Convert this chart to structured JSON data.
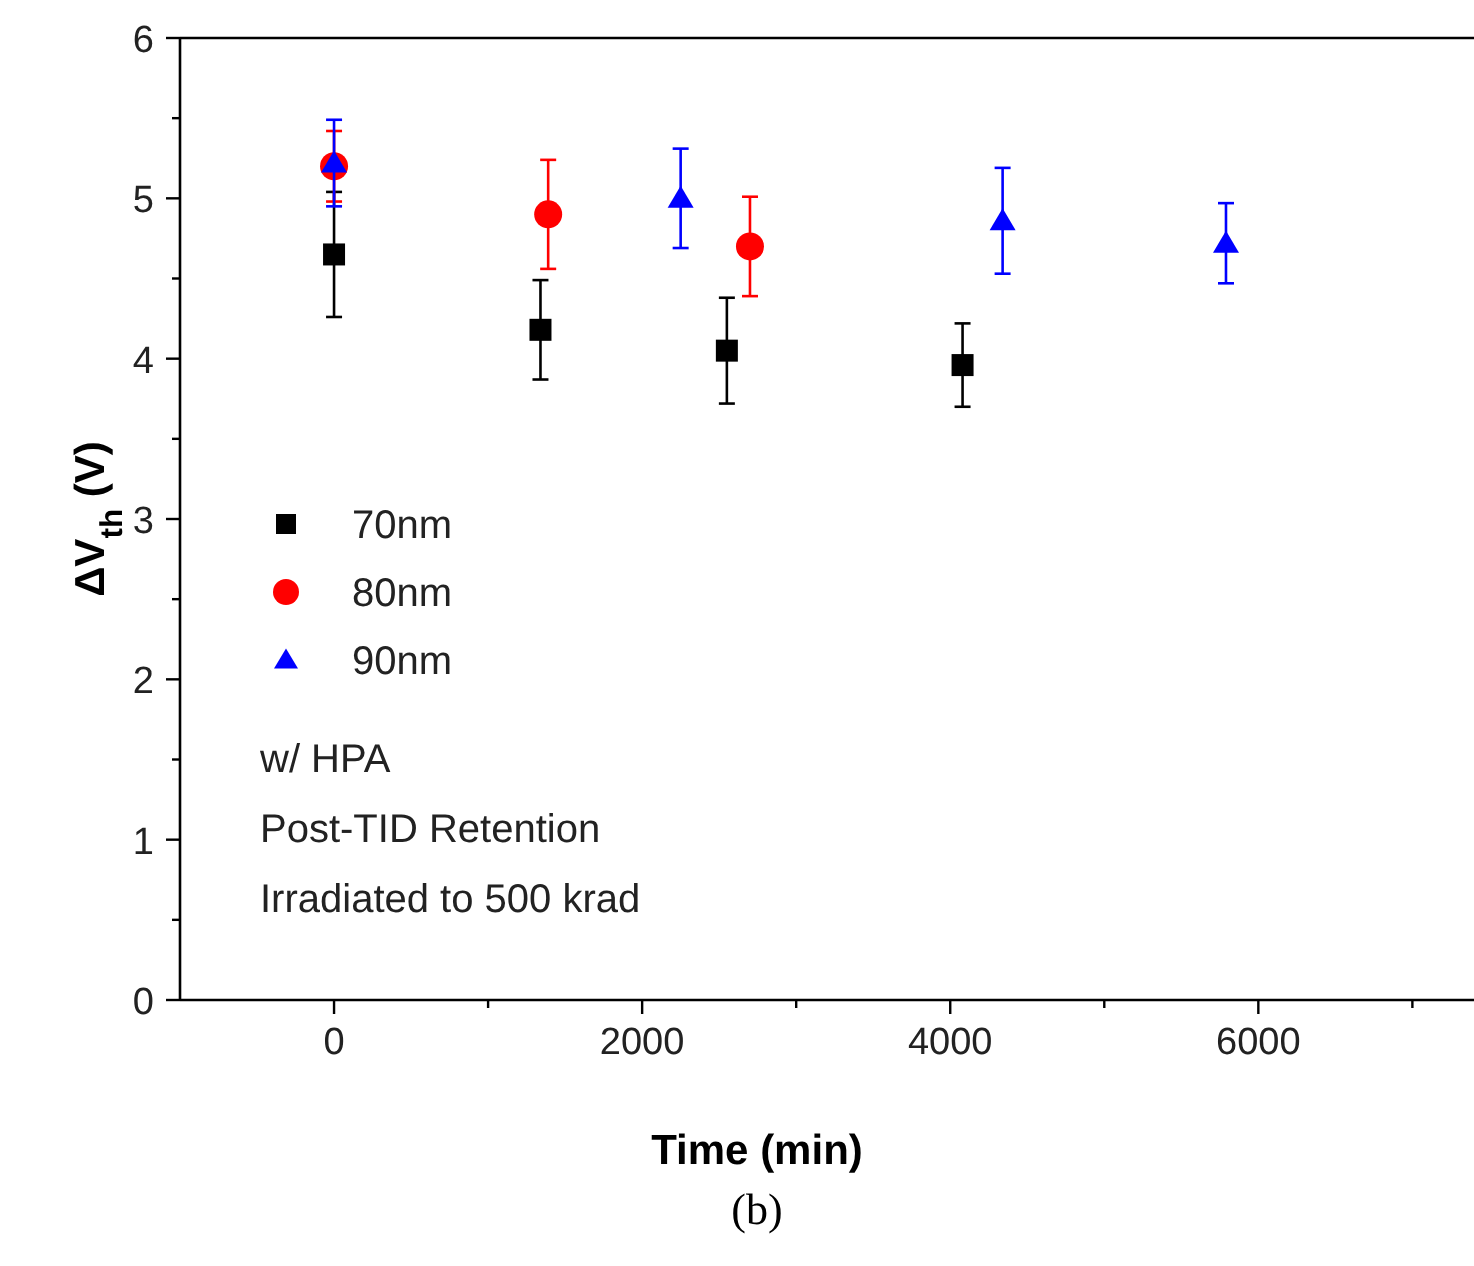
{
  "chart_data": {
    "type": "scatter",
    "xlabel": "Time (min)",
    "ylabel": "ΔV$_{th}$ (V)",
    "xlim": [
      -1000,
      7400
    ],
    "ylim": [
      0,
      6
    ],
    "xticks": [
      0,
      {
        "value": 1000,
        "label": null
      },
      2000,
      {
        "value": 3000,
        "label": null
      },
      4000,
      {
        "value": 5000,
        "label": null
      },
      6000,
      {
        "value": 7000,
        "label": null
      }
    ],
    "yticks": [
      0,
      {
        "value": 0.5,
        "label": null
      },
      1,
      {
        "value": 1.5,
        "label": null
      },
      2,
      {
        "value": 2.5,
        "label": null
      },
      3,
      {
        "value": 3.5,
        "label": null
      },
      4,
      {
        "value": 4.5,
        "label": null
      },
      5,
      {
        "value": 5.5,
        "label": null
      },
      6
    ],
    "grid": false,
    "legend": "left",
    "series": [
      {
        "name": "70nm",
        "color": "#000000",
        "marker": "square",
        "x": [
          0,
          1340,
          2550,
          4080
        ],
        "values": [
          4.65,
          4.18,
          4.05,
          3.96
        ],
        "errors": [
          0.39,
          0.31,
          0.33,
          0.26
        ]
      },
      {
        "name": "80nm",
        "color": "#ff0000",
        "marker": "circle",
        "x": [
          0,
          1390,
          2700
        ],
        "values": [
          5.2,
          4.9,
          4.7
        ],
        "errors": [
          0.22,
          0.34,
          0.31
        ]
      },
      {
        "name": "90nm",
        "color": "#0000ff",
        "marker": "triangle",
        "x": [
          0,
          2250,
          4340,
          5790
        ],
        "values": [
          5.22,
          5.0,
          4.86,
          4.72
        ],
        "errors": [
          0.27,
          0.31,
          0.33,
          0.25
        ]
      }
    ],
    "annotations": [
      "w/ HPA",
      "Post-TID Retention",
      "Irradiated to 500 krad",
      "(b)"
    ]
  }
}
